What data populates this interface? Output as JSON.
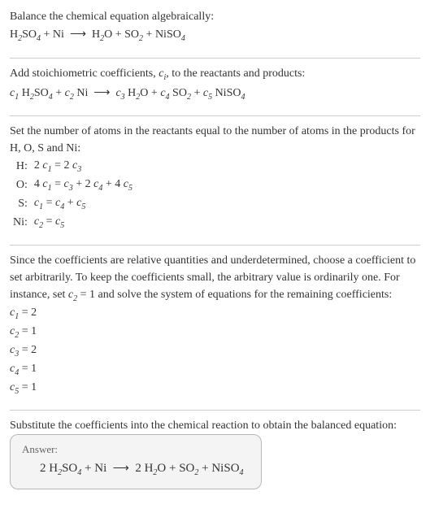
{
  "intro": {
    "prompt": "Balance the chemical equation algebraically:",
    "eq": "H",
    "eq_parts": {
      "h2so4": "H",
      "ni": "Ni",
      "h2o": "H",
      "so2": "SO",
      "niso4": "NiSO"
    }
  },
  "step1": {
    "text_a": "Add stoichiometric coefficients, ",
    "ci": "c",
    "ci_sub": "i",
    "text_b": ", to the reactants and products:"
  },
  "step2": {
    "text": "Set the number of atoms in the reactants equal to the number of atoms in the products for H, O, S and Ni:",
    "rows": [
      {
        "label": "H:",
        "eq": "2 c₁ = 2 c₃",
        "lhs_num": "2",
        "lhs_c": "c",
        "lhs_i": "1",
        "rhs_num": "2",
        "rhs_c": "c",
        "rhs_i": "3"
      },
      {
        "label": "O:",
        "eq": "4 c₁ = c₃ + 2 c₄ + 4 c₅"
      },
      {
        "label": "S:",
        "eq": "c₁ = c₄ + c₅"
      },
      {
        "label": "Ni:",
        "eq": "c₂ = c₅"
      }
    ]
  },
  "step3": {
    "text_a": "Since the coefficients are relative quantities and underdetermined, choose a coefficient to set arbitrarily. To keep the coefficients small, the arbitrary value is ordinarily one. For instance, set ",
    "c2": "c",
    "c2_sub": "2",
    "text_b": " = 1 and solve the system of equations for the remaining coefficients:",
    "vals": [
      {
        "c": "c",
        "i": "1",
        "v": " = 2"
      },
      {
        "c": "c",
        "i": "2",
        "v": " = 1"
      },
      {
        "c": "c",
        "i": "3",
        "v": " = 2"
      },
      {
        "c": "c",
        "i": "4",
        "v": " = 1"
      },
      {
        "c": "c",
        "i": "5",
        "v": " = 1"
      }
    ]
  },
  "step4": {
    "text": "Substitute the coefficients into the chemical reaction to obtain the balanced equation:"
  },
  "answer": {
    "label": "Answer:",
    "coef1": "2 ",
    "coef2": "2 "
  },
  "style": {
    "body_fontsize": 14,
    "text_color": "#333333",
    "divider_color": "#cccccc",
    "box_bg": "#f4f4f4",
    "box_border": "#b8b8b8",
    "answer_label_color": "#666666"
  }
}
